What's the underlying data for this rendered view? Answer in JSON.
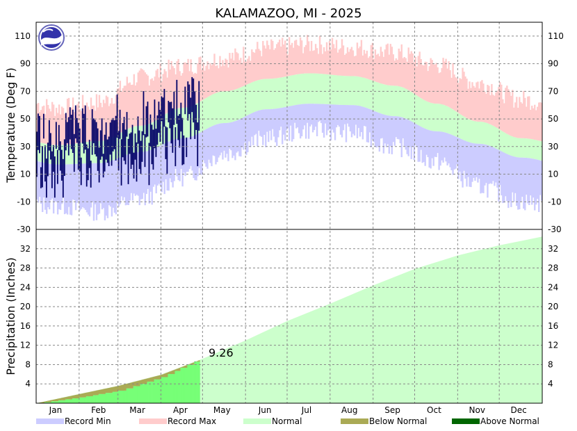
{
  "chart_data": {
    "title": "KALAMAZOO, MI - 2025",
    "months": [
      "Jan",
      "Feb",
      "Mar",
      "Apr",
      "May",
      "Jun",
      "Jul",
      "Aug",
      "Sep",
      "Oct",
      "Nov",
      "Dec"
    ],
    "temperature_panel": {
      "type": "area",
      "ylabel": "Temperature (Deg F)",
      "ylim": [
        -30,
        120
      ],
      "yticks": [
        -30,
        -10,
        10,
        30,
        50,
        70,
        90,
        110
      ],
      "normal_high_by_month": [
        31,
        34,
        45,
        58,
        70,
        79,
        83,
        81,
        74,
        61,
        48,
        36
      ],
      "normal_low_by_month": [
        17,
        18,
        26,
        36,
        47,
        57,
        61,
        60,
        52,
        41,
        32,
        22
      ],
      "record_max_by_month": [
        58,
        62,
        80,
        88,
        94,
        101,
        104,
        102,
        98,
        89,
        76,
        64
      ],
      "record_min_by_month": [
        -13,
        -17,
        -8,
        8,
        25,
        36,
        42,
        40,
        30,
        19,
        1,
        -10
      ],
      "observed_days_through": 118,
      "observed_range": {
        "min": -7,
        "max": 81
      }
    },
    "precipitation_panel": {
      "type": "area",
      "ylabel": "Precipitation (Inches)",
      "ylim": [
        0,
        36
      ],
      "yticks": [
        4,
        8,
        12,
        16,
        20,
        24,
        28,
        32
      ],
      "normal_cumulative_end_of_month": [
        1.9,
        3.6,
        5.9,
        9.2,
        13.0,
        17.0,
        20.6,
        24.4,
        27.8,
        30.6,
        32.7,
        34.5
      ],
      "observed_cumulative_end_of_month": [
        1.2,
        2.6,
        5.4,
        9.26
      ],
      "observed_total": "9.26"
    },
    "legend": [
      {
        "label": "Record Min",
        "color": "#ccccff"
      },
      {
        "label": "Record Max",
        "color": "#ffcccc"
      },
      {
        "label": "Normal",
        "color": "#ccffcc"
      },
      {
        "label": "Below Normal",
        "color": "#aaaa55"
      },
      {
        "label": "Above Normal",
        "color": "#006600"
      }
    ],
    "colors": {
      "record_min": "#ccccff",
      "record_max": "#ffcccc",
      "normal": "#ccffcc",
      "observed_temp": "#000066",
      "observed_precip": "#77ff77",
      "below_normal": "#aaaa55",
      "above_normal": "#006600"
    }
  }
}
